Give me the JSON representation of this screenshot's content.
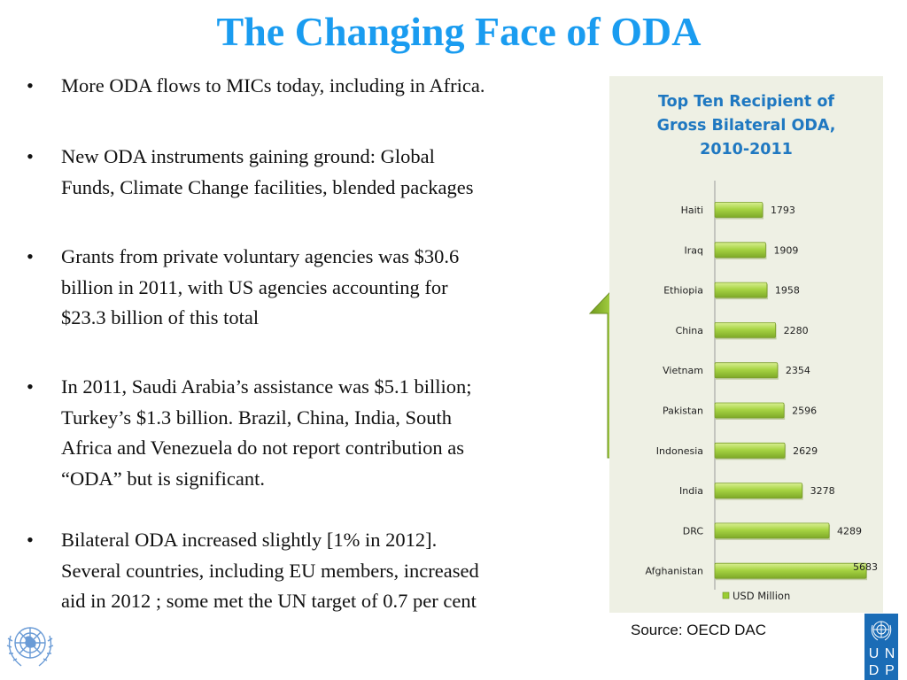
{
  "slide": {
    "title": "The Changing Face of ODA",
    "bullet_glyph": "•",
    "bullets": [
      [
        "More ODA flows to MICs today, including in Africa."
      ],
      [
        "New ODA instruments gaining ground: Global",
        "Funds, Climate Change facilities, blended packages"
      ],
      [
        "Grants from private voluntary agencies was $30.6",
        "billion in 2011, with US agencies accounting for",
        "$23.3 billion of this total"
      ],
      [
        "In 2011, Saudi Arabia’s assistance was $5.1 billion;",
        "Turkey’s $1.3 billion. Brazil, China, India, South",
        "Africa and Venezuela do not report contribution as",
        "“ODA” but is significant."
      ],
      [
        "Bilateral ODA increased slightly [1% in 2012].",
        "Several countries, including EU members, increased",
        "aid in 2012 ; some met the UN target of  0.7 per cent"
      ]
    ],
    "source": "Source: OECD DAC",
    "logos": {
      "left": "un-emblem-icon",
      "right_letters": [
        "U",
        "N",
        "D",
        "P"
      ]
    },
    "arrow_icon": "up-arrow-icon",
    "colors": {
      "title": "#1a9cf0",
      "chart_title": "#1f78c1",
      "chart_bg": "#eef0e4",
      "bar": "#9acd32",
      "undp_blue": "#1a6cb6"
    }
  },
  "chart_data": {
    "type": "bar",
    "orientation": "horizontal",
    "title": "Top Ten Recipient of Gross Bilateral ODA, 2010-2011",
    "title_lines": [
      "Top Ten Recipient of",
      "Gross Bilateral ODA,",
      "2010-2011"
    ],
    "categories": [
      "Haiti",
      "Iraq",
      "Ethiopia",
      "China",
      "Vietnam",
      "Pakistan",
      "Indonesia",
      "India",
      "DRC",
      "Afghanistan"
    ],
    "series": [
      {
        "name": "USD Million",
        "values": [
          1793,
          1909,
          1958,
          2280,
          2354,
          2596,
          2629,
          3278,
          4289,
          5683
        ]
      }
    ],
    "xlabel": "",
    "ylabel": "",
    "xlim": [
      0,
      5683
    ],
    "grid": false,
    "data_labels": true,
    "legend": {
      "entries": [
        "USD Million"
      ],
      "position": "bottom"
    }
  }
}
